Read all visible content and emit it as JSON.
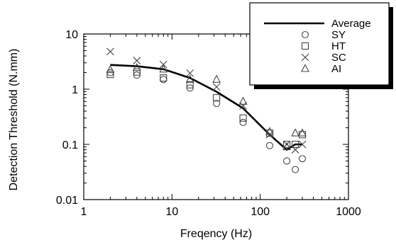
{
  "chart_data": {
    "type": "line",
    "title": "",
    "xlabel": "Freqency (Hz)",
    "ylabel": "Detection Threshold (N.mm)",
    "xscale": "log",
    "yscale": "log",
    "xlim": [
      1,
      1000
    ],
    "ylim": [
      0.01,
      10
    ],
    "x_tick_labels": [
      "1",
      "10",
      "100",
      "1000"
    ],
    "y_tick_labels": [
      "0.01",
      "0.1",
      "1",
      "10"
    ],
    "grid": false,
    "legend_position": "top-right",
    "series": [
      {
        "name": "Average",
        "marker": "line",
        "points": [
          [
            2,
            2.75
          ],
          [
            4,
            2.6
          ],
          [
            8,
            2.3
          ],
          [
            16,
            1.6
          ],
          [
            32,
            0.9
          ],
          [
            64,
            0.45
          ],
          [
            128,
            0.15
          ],
          [
            200,
            0.08
          ],
          [
            250,
            0.1
          ],
          [
            300,
            0.1
          ]
        ]
      },
      {
        "name": "SY",
        "marker": "circle",
        "points": [
          [
            2,
            2.0
          ],
          [
            4,
            1.8
          ],
          [
            8,
            1.5
          ],
          [
            16,
            1.05
          ],
          [
            32,
            0.55
          ],
          [
            64,
            0.25
          ],
          [
            128,
            0.095
          ],
          [
            200,
            0.05
          ],
          [
            250,
            0.035
          ],
          [
            300,
            0.055
          ]
        ]
      },
      {
        "name": "HT",
        "marker": "square",
        "points": [
          [
            2,
            1.85
          ],
          [
            4,
            2.05
          ],
          [
            8,
            1.6
          ],
          [
            16,
            1.2
          ],
          [
            32,
            0.7
          ],
          [
            64,
            0.3
          ],
          [
            128,
            0.16
          ],
          [
            200,
            0.1
          ],
          [
            250,
            0.1
          ],
          [
            300,
            0.15
          ]
        ]
      },
      {
        "name": "SC",
        "marker": "x",
        "points": [
          [
            2,
            4.8
          ],
          [
            4,
            3.3
          ],
          [
            8,
            2.8
          ],
          [
            16,
            1.95
          ],
          [
            32,
            1.1
          ],
          [
            64,
            0.5
          ],
          [
            128,
            0.15
          ],
          [
            200,
            0.1
          ],
          [
            250,
            0.08
          ],
          [
            300,
            0.1
          ]
        ]
      },
      {
        "name": "AI",
        "marker": "triangle",
        "points": [
          [
            2,
            2.25
          ],
          [
            4,
            2.45
          ],
          [
            8,
            2.3
          ],
          [
            16,
            1.5
          ],
          [
            32,
            1.5
          ],
          [
            64,
            0.6
          ],
          [
            128,
            0.17
          ],
          [
            200,
            0.09
          ],
          [
            250,
            0.16
          ],
          [
            300,
            0.16
          ]
        ]
      }
    ]
  }
}
